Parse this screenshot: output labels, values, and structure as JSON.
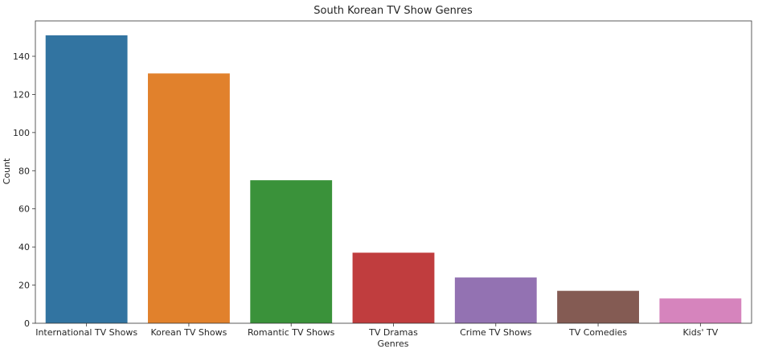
{
  "chart_data": {
    "type": "bar",
    "title": "South Korean TV Show Genres",
    "xlabel": "Genres",
    "ylabel": "Count",
    "categories": [
      "International TV Shows",
      "Korean TV Shows",
      "Romantic TV Shows",
      "TV Dramas",
      "Crime TV Shows",
      "TV Comedies",
      "Kids' TV"
    ],
    "values": [
      151,
      131,
      75,
      37,
      24,
      17,
      13
    ],
    "colors": [
      "#3274a1",
      "#e1812c",
      "#3a923a",
      "#c03d3e",
      "#9372b2",
      "#845b53",
      "#d684bd"
    ],
    "ylim": [
      0,
      158.55
    ],
    "yticks": [
      0,
      20,
      40,
      60,
      80,
      100,
      120,
      140
    ],
    "grid": false,
    "legend": "none"
  }
}
